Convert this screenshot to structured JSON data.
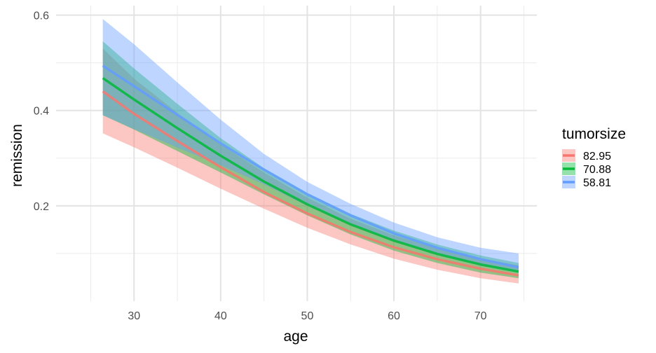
{
  "chart_data": {
    "type": "line",
    "title": "",
    "xlabel": "age",
    "ylabel": "remission",
    "xlim": [
      21,
      76.5
    ],
    "ylim": [
      0.0,
      0.62
    ],
    "x_ticks": [
      30,
      40,
      50,
      60,
      70
    ],
    "x_tick_labels": [
      "30",
      "40",
      "50",
      "60",
      "70"
    ],
    "x_minor_ticks": [
      25,
      35,
      45,
      55,
      65,
      75
    ],
    "y_ticks": [
      0.2,
      0.4,
      0.6
    ],
    "y_tick_labels": [
      "0.2",
      "0.4",
      "0.6"
    ],
    "y_minor_ticks": [
      0.1,
      0.3,
      0.5
    ],
    "grid": true,
    "legend": {
      "title": "tumorsize",
      "position": "right"
    },
    "x": [
      26.4,
      30,
      35,
      40,
      45,
      50,
      55,
      60,
      65,
      70,
      74.4
    ],
    "series": [
      {
        "name": "82.95",
        "color": "#f8766d",
        "values": [
          0.44,
          0.393,
          0.336,
          0.281,
          0.229,
          0.184,
          0.145,
          0.113,
          0.088,
          0.068,
          0.054
        ],
        "lower": [
          0.352,
          0.323,
          0.28,
          0.236,
          0.194,
          0.154,
          0.119,
          0.089,
          0.066,
          0.048,
          0.037
        ],
        "upper": [
          0.53,
          0.467,
          0.395,
          0.329,
          0.27,
          0.217,
          0.173,
          0.138,
          0.111,
          0.09,
          0.075
        ]
      },
      {
        "name": "70.88",
        "color": "#00ba38",
        "values": [
          0.468,
          0.423,
          0.363,
          0.305,
          0.251,
          0.203,
          0.161,
          0.127,
          0.099,
          0.077,
          0.062
        ],
        "lower": [
          0.39,
          0.36,
          0.315,
          0.27,
          0.224,
          0.18,
          0.14,
          0.106,
          0.08,
          0.06,
          0.048
        ],
        "upper": [
          0.545,
          0.488,
          0.414,
          0.342,
          0.279,
          0.227,
          0.183,
          0.148,
          0.119,
          0.096,
          0.08
        ]
      },
      {
        "name": "58.81",
        "color": "#619cff",
        "values": [
          0.494,
          0.451,
          0.391,
          0.331,
          0.276,
          0.224,
          0.18,
          0.142,
          0.112,
          0.088,
          0.071
        ],
        "lower": [
          0.39,
          0.361,
          0.322,
          0.285,
          0.245,
          0.2,
          0.16,
          0.126,
          0.098,
          0.075,
          0.06
        ],
        "upper": [
          0.592,
          0.539,
          0.459,
          0.381,
          0.309,
          0.25,
          0.204,
          0.165,
          0.134,
          0.112,
          0.1
        ]
      }
    ]
  }
}
